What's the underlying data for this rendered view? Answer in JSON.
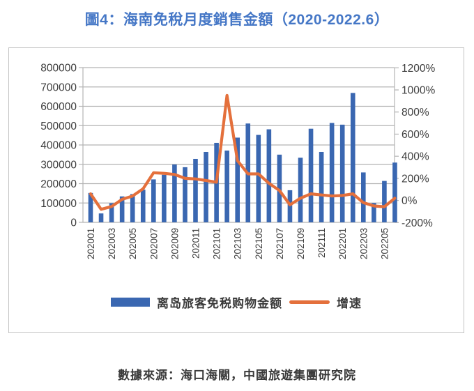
{
  "title": "圖4：海南免稅月度銷售金額（2020-2022.6）",
  "source": "數據來源：海口海關，中國旅遊集團研究院",
  "legend": {
    "bars_label": "离岛旅客免税购物金额",
    "line_label": "增速"
  },
  "colors": {
    "title": "#4577c6",
    "bar": "#3a67b1",
    "line": "#e4703c",
    "grid": "#b3b3b3",
    "axis_text": "#3d3d3d",
    "border": "#c3c3c3"
  },
  "chart_data": {
    "type": "bar",
    "subtype": "combo bar + line, dual axis",
    "title": "圖4：海南免稅月度銷售金額（2020-2022.6）",
    "categories": [
      "202001",
      "202002",
      "202003",
      "202004",
      "202005",
      "202006",
      "202007",
      "202008",
      "202009",
      "202010",
      "202011",
      "202012",
      "202101",
      "202102",
      "202103",
      "202104",
      "202105",
      "202106",
      "202107",
      "202108",
      "202109",
      "202110",
      "202111",
      "202112",
      "202201",
      "202202",
      "202203",
      "202204",
      "202205",
      "202206"
    ],
    "x_tick_labels": [
      "202001",
      "202003",
      "202005",
      "202007",
      "202009",
      "202011",
      "202101",
      "202103",
      "202105",
      "202107",
      "202109",
      "202111",
      "202201",
      "202203",
      "202205"
    ],
    "series": [
      {
        "name": "离岛旅客免税购物金额",
        "type": "bar",
        "axis": "left",
        "values": [
          152000,
          46000,
          99000,
          134000,
          146000,
          169000,
          222000,
          246000,
          299000,
          285000,
          328000,
          364000,
          411000,
          371000,
          438000,
          511000,
          452000,
          481000,
          350000,
          166000,
          334000,
          484000,
          364000,
          514000,
          505000,
          669000,
          258000,
          100000,
          214000,
          309000
        ]
      },
      {
        "name": "增速",
        "type": "line",
        "axis": "right",
        "unit": "%",
        "values": [
          60,
          -80,
          -55,
          10,
          40,
          105,
          250,
          245,
          235,
          200,
          195,
          180,
          165,
          950,
          360,
          240,
          240,
          155,
          90,
          -40,
          20,
          60,
          50,
          40,
          45,
          60,
          -20,
          -50,
          -57,
          20
        ]
      }
    ],
    "left_axis": {
      "ticks": [
        "800000",
        "700000",
        "600000",
        "500000",
        "400000",
        "300000",
        "200000",
        "100000",
        "0"
      ],
      "range": [
        0,
        800000
      ]
    },
    "right_axis": {
      "ticks": [
        "1200%",
        "1000%",
        "800%",
        "600%",
        "400%",
        "200%",
        "0%",
        "-200%"
      ],
      "range": [
        -200,
        1200
      ]
    },
    "grid": "horizontal",
    "legend_position": "bottom"
  }
}
